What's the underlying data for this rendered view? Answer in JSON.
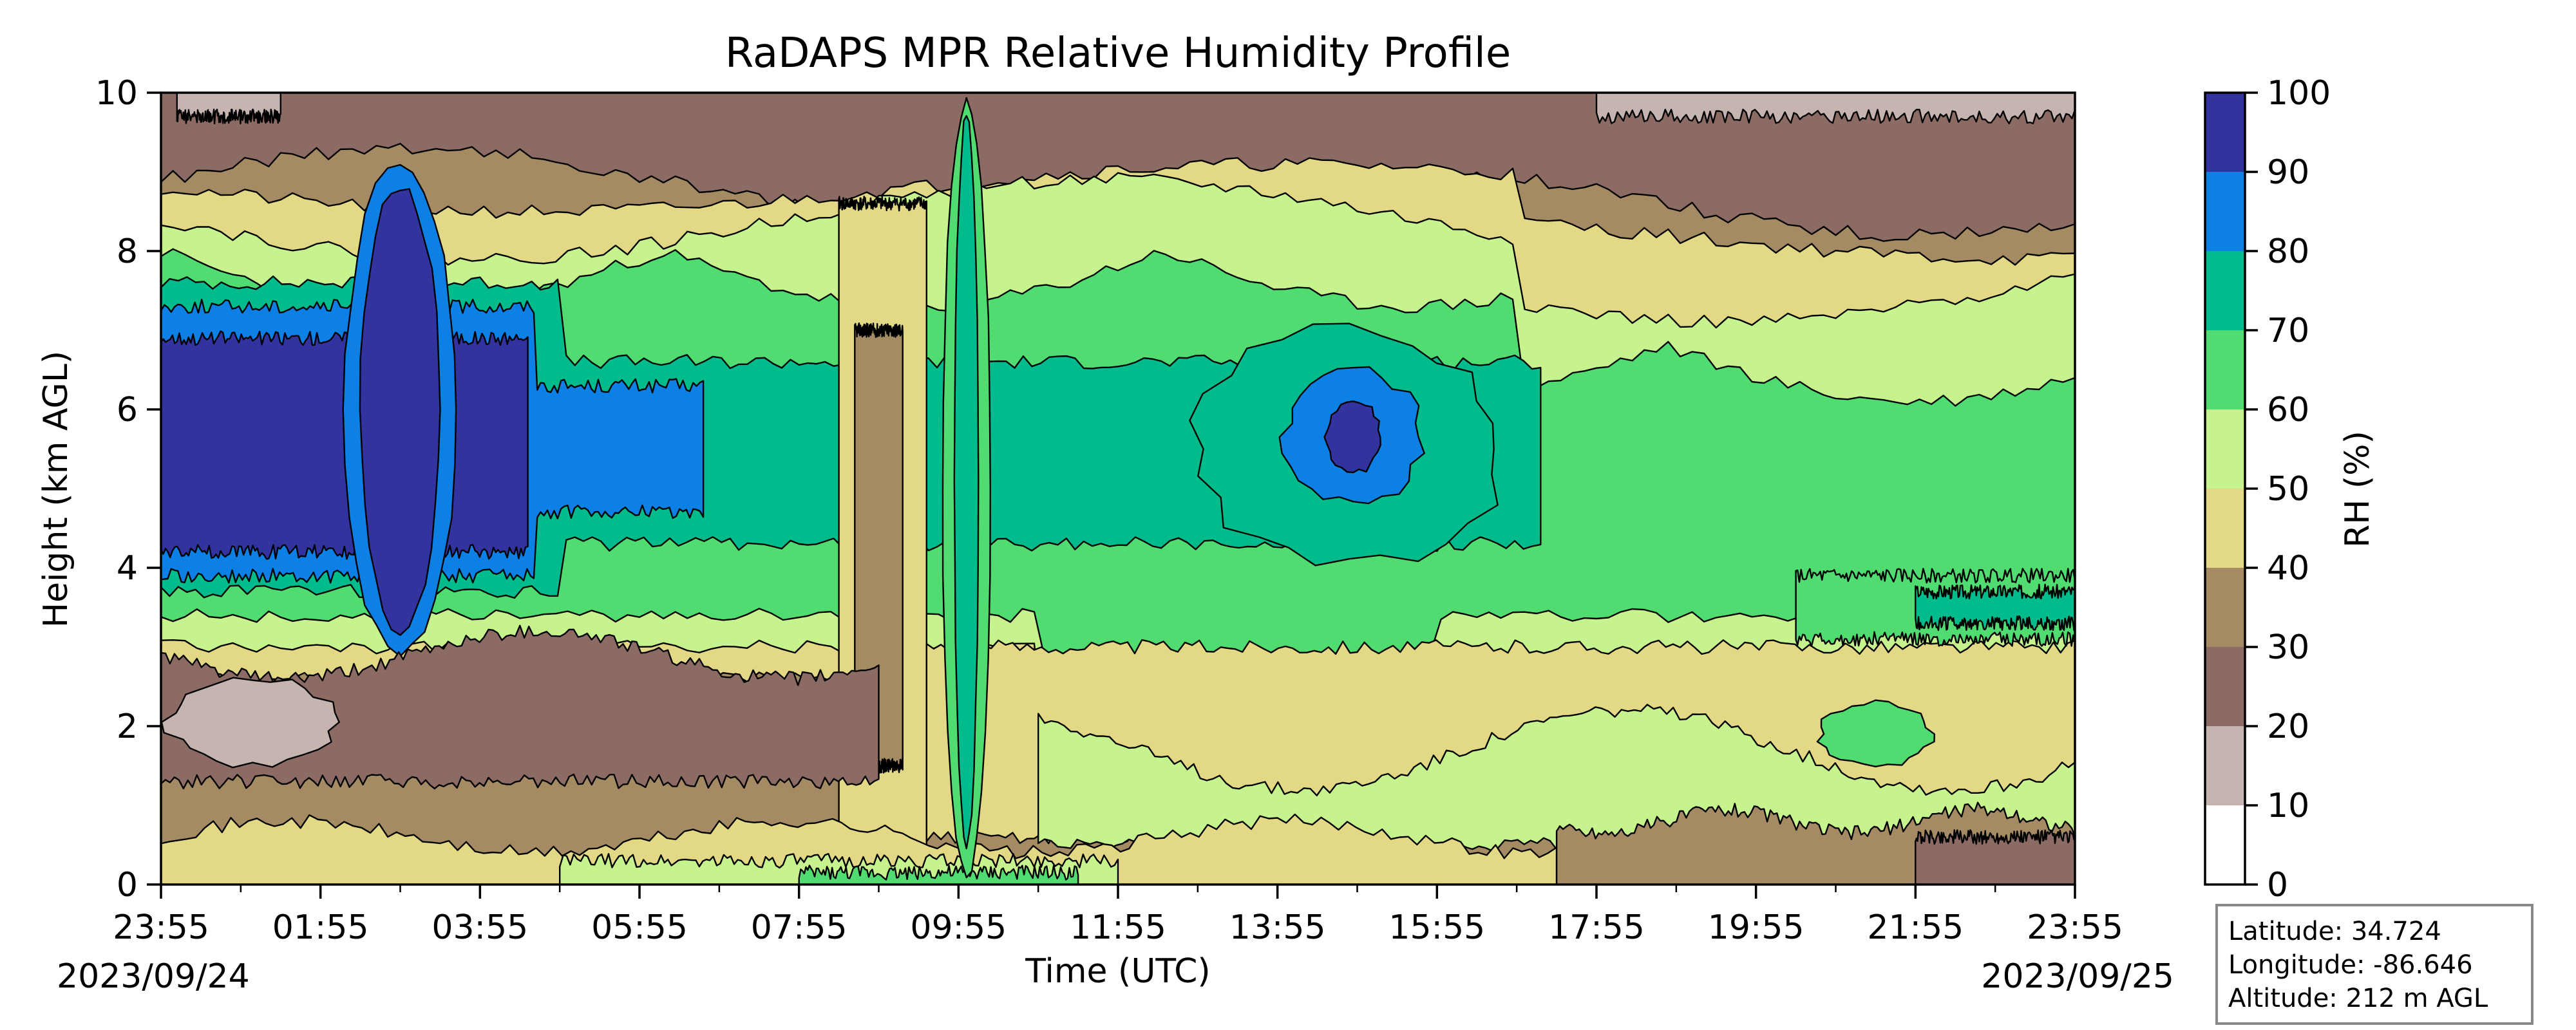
{
  "chart_data": {
    "type": "heatmap",
    "title": "RaDAPS MPR Relative Humidity Profile",
    "xlabel": "Time (UTC)",
    "ylabel": "Height (km AGL)",
    "x_ticks": [
      "23:55",
      "01:55",
      "03:55",
      "05:55",
      "07:55",
      "09:55",
      "11:55",
      "13:55",
      "15:55",
      "17:55",
      "19:55",
      "21:55",
      "23:55"
    ],
    "x_range_hours": [
      0,
      24
    ],
    "date_start": "2023/09/24",
    "date_end": "2023/09/25",
    "y_ticks": [
      0,
      2,
      4,
      6,
      8,
      10
    ],
    "ylim": [
      0,
      10
    ],
    "colorbar": {
      "label": "RH (%)",
      "ticks": [
        0,
        10,
        20,
        30,
        40,
        50,
        60,
        70,
        80,
        90,
        100
      ],
      "levels": [
        {
          "range": [
            0,
            10
          ],
          "color": "#ffffff"
        },
        {
          "range": [
            10,
            20
          ],
          "color": "#c5b4b0"
        },
        {
          "range": [
            20,
            30
          ],
          "color": "#8b6b64"
        },
        {
          "range": [
            30,
            40
          ],
          "color": "#a48b63"
        },
        {
          "range": [
            40,
            50
          ],
          "color": "#e2d886"
        },
        {
          "range": [
            50,
            60
          ],
          "color": "#c7f38e"
        },
        {
          "range": [
            60,
            70
          ],
          "color": "#50dc71"
        },
        {
          "range": [
            70,
            80
          ],
          "color": "#00bc8c"
        },
        {
          "range": [
            80,
            90
          ],
          "color": "#0d80e6"
        },
        {
          "range": [
            90,
            100
          ],
          "color": "#3333a0"
        }
      ]
    },
    "features": [
      {
        "desc": "very moist layer",
        "t_hours": [
          0,
          4.5
        ],
        "z_km": [
          4.2,
          6.9
        ],
        "rh_class": "90-100"
      },
      {
        "desc": "moist column",
        "t_hours": [
          2.4,
          3.6
        ],
        "z_km": [
          3.2,
          8.8
        ],
        "rh_class": "90-100"
      },
      {
        "desc": "moist layer",
        "t_hours": [
          14.1,
          15.8
        ],
        "z_km": [
          4.8,
          6.5
        ],
        "rh_class": "80-90"
      },
      {
        "desc": "dry band",
        "t_hours": [
          8.5,
          9.6
        ],
        "z_km": [
          0,
          8.5
        ],
        "rh_class": "40-50"
      },
      {
        "desc": "dry upper layer",
        "t_hours": [
          0,
          24
        ],
        "z_km": [
          8.5,
          10
        ],
        "rh_class": "20-30"
      },
      {
        "desc": "dry surface layer",
        "t_hours": [
          17.5,
          24
        ],
        "z_km": [
          0,
          1
        ],
        "rh_class": "30-40"
      }
    ]
  },
  "info_box": {
    "latitude": "Latitude: 34.724",
    "longitude": "Longitude: -86.646",
    "altitude": "Altitude: 212 m AGL"
  }
}
